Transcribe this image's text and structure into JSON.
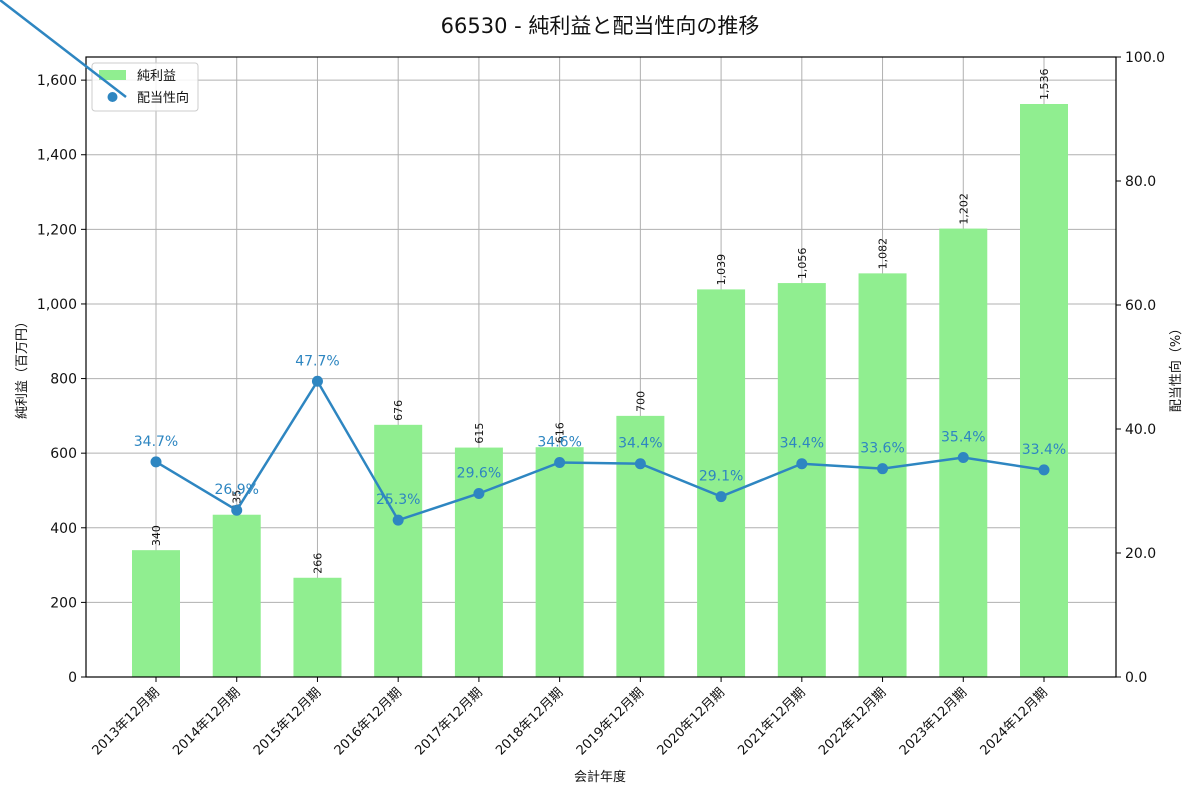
{
  "chart_data": {
    "type": "bar+line",
    "title": "66530 - 純利益と配当性向の推移",
    "xlabel": "会計年度",
    "ylabel": "純利益（百万円）",
    "y2label": "配当性向（%）",
    "categories": [
      "2013年12月期",
      "2014年12月期",
      "2015年12月期",
      "2016年12月期",
      "2017年12月期",
      "2018年12月期",
      "2019年12月期",
      "2020年12月期",
      "2021年12月期",
      "2022年12月期",
      "2023年12月期",
      "2024年12月期"
    ],
    "series": [
      {
        "name": "純利益",
        "type": "bar",
        "axis": "left",
        "color": "#90ee90",
        "values": [
          340,
          435,
          266,
          676,
          615,
          616,
          700,
          1039,
          1056,
          1082,
          1202,
          1536
        ],
        "labels": [
          "340",
          "435",
          "266",
          "676",
          "615",
          "616",
          "700",
          "1,039",
          "1,056",
          "1,082",
          "1,202",
          "1,536"
        ]
      },
      {
        "name": "配当性向",
        "type": "line",
        "axis": "right",
        "color": "#2e86c1",
        "values": [
          34.7,
          26.9,
          47.7,
          25.3,
          29.6,
          34.6,
          34.4,
          29.1,
          34.4,
          33.6,
          35.4,
          33.4
        ],
        "labels": [
          "34.7%",
          "26.9%",
          "47.7%",
          "25.3%",
          "29.6%",
          "34.6%",
          "34.4%",
          "29.1%",
          "34.4%",
          "33.6%",
          "35.4%",
          "33.4%"
        ]
      }
    ],
    "ylim": [
      0,
      1662
    ],
    "y2lim": [
      0,
      100
    ],
    "yticks": [
      0,
      200,
      400,
      600,
      800,
      1000,
      1200,
      1400,
      1600
    ],
    "ytick_labels": [
      "0",
      "200",
      "400",
      "600",
      "800",
      "1,000",
      "1,200",
      "1,400",
      "1,600"
    ],
    "y2ticks": [
      0,
      20,
      40,
      60,
      80,
      100
    ],
    "y2tick_labels": [
      "0.0",
      "20.0",
      "40.0",
      "60.0",
      "80.0",
      "100.0"
    ],
    "grid": true,
    "legend": {
      "position": "upper left",
      "entries": [
        "純利益",
        "配当性向"
      ]
    }
  }
}
